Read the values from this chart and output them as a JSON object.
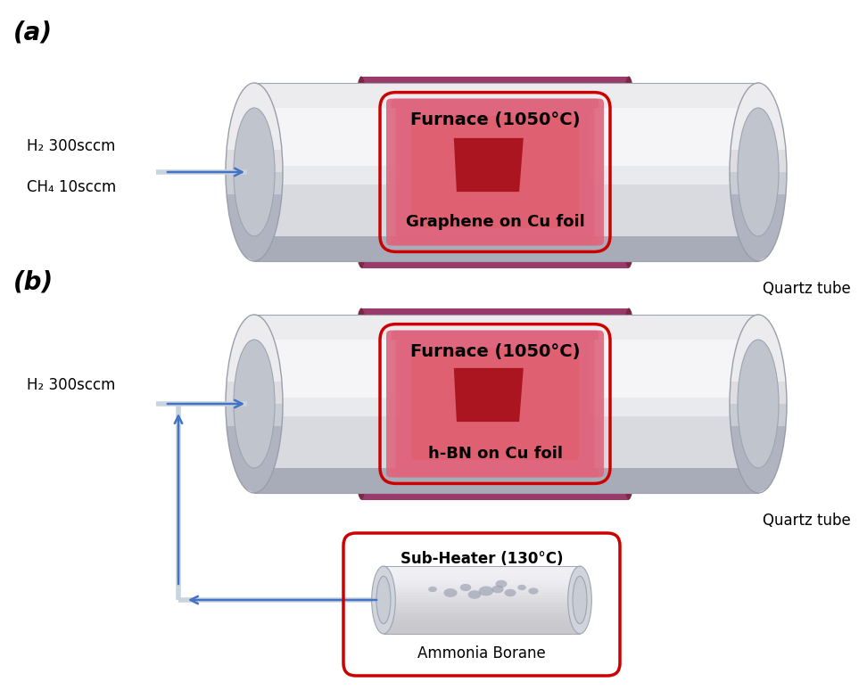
{
  "panel_a": {
    "label": "(a)",
    "gas_text_line1": "H₂ 300sccm",
    "gas_text_line2": "CH₄ 10sccm",
    "furnace_label": "Furnace (1050°C)",
    "sample_label": "Graphene on Cu foil",
    "quartz_label": "Quartz tube"
  },
  "panel_b": {
    "label": "(b)",
    "gas_text": "H₂ 300sccm",
    "furnace_label": "Furnace (1050°C)",
    "sample_label": "h-BN on Cu foil",
    "quartz_label": "Quartz tube",
    "subheater_label": "Sub-Heater (130°C)",
    "ammonia_label": "Ammonia Borane"
  },
  "colors": {
    "tube_outer_dark": "#b8bcc8",
    "tube_outer_mid": "#d0d4dc",
    "tube_outer_light": "#eceef2",
    "tube_bore": "#f0f2f4",
    "furnace_outer": "#9a3a6a",
    "furnace_mid": "#c0507a",
    "furnace_bright": "#d86888",
    "furnace_inner": "#e07090",
    "hot_zone_dark": "#c01828",
    "hot_zone_mid": "#d82030",
    "hot_zone_light": "#e04050",
    "foil_color": "#aa1520",
    "foil_edge": "#cc2530",
    "red_border": "#cc0000",
    "arrow_color": "#4472c4",
    "arrow_line": "#8ab0d0",
    "subh_tube_outer": "#c8ccd4",
    "subh_tube_inner": "#e0e2e8",
    "ammonia_color": "#9aa0b0"
  }
}
